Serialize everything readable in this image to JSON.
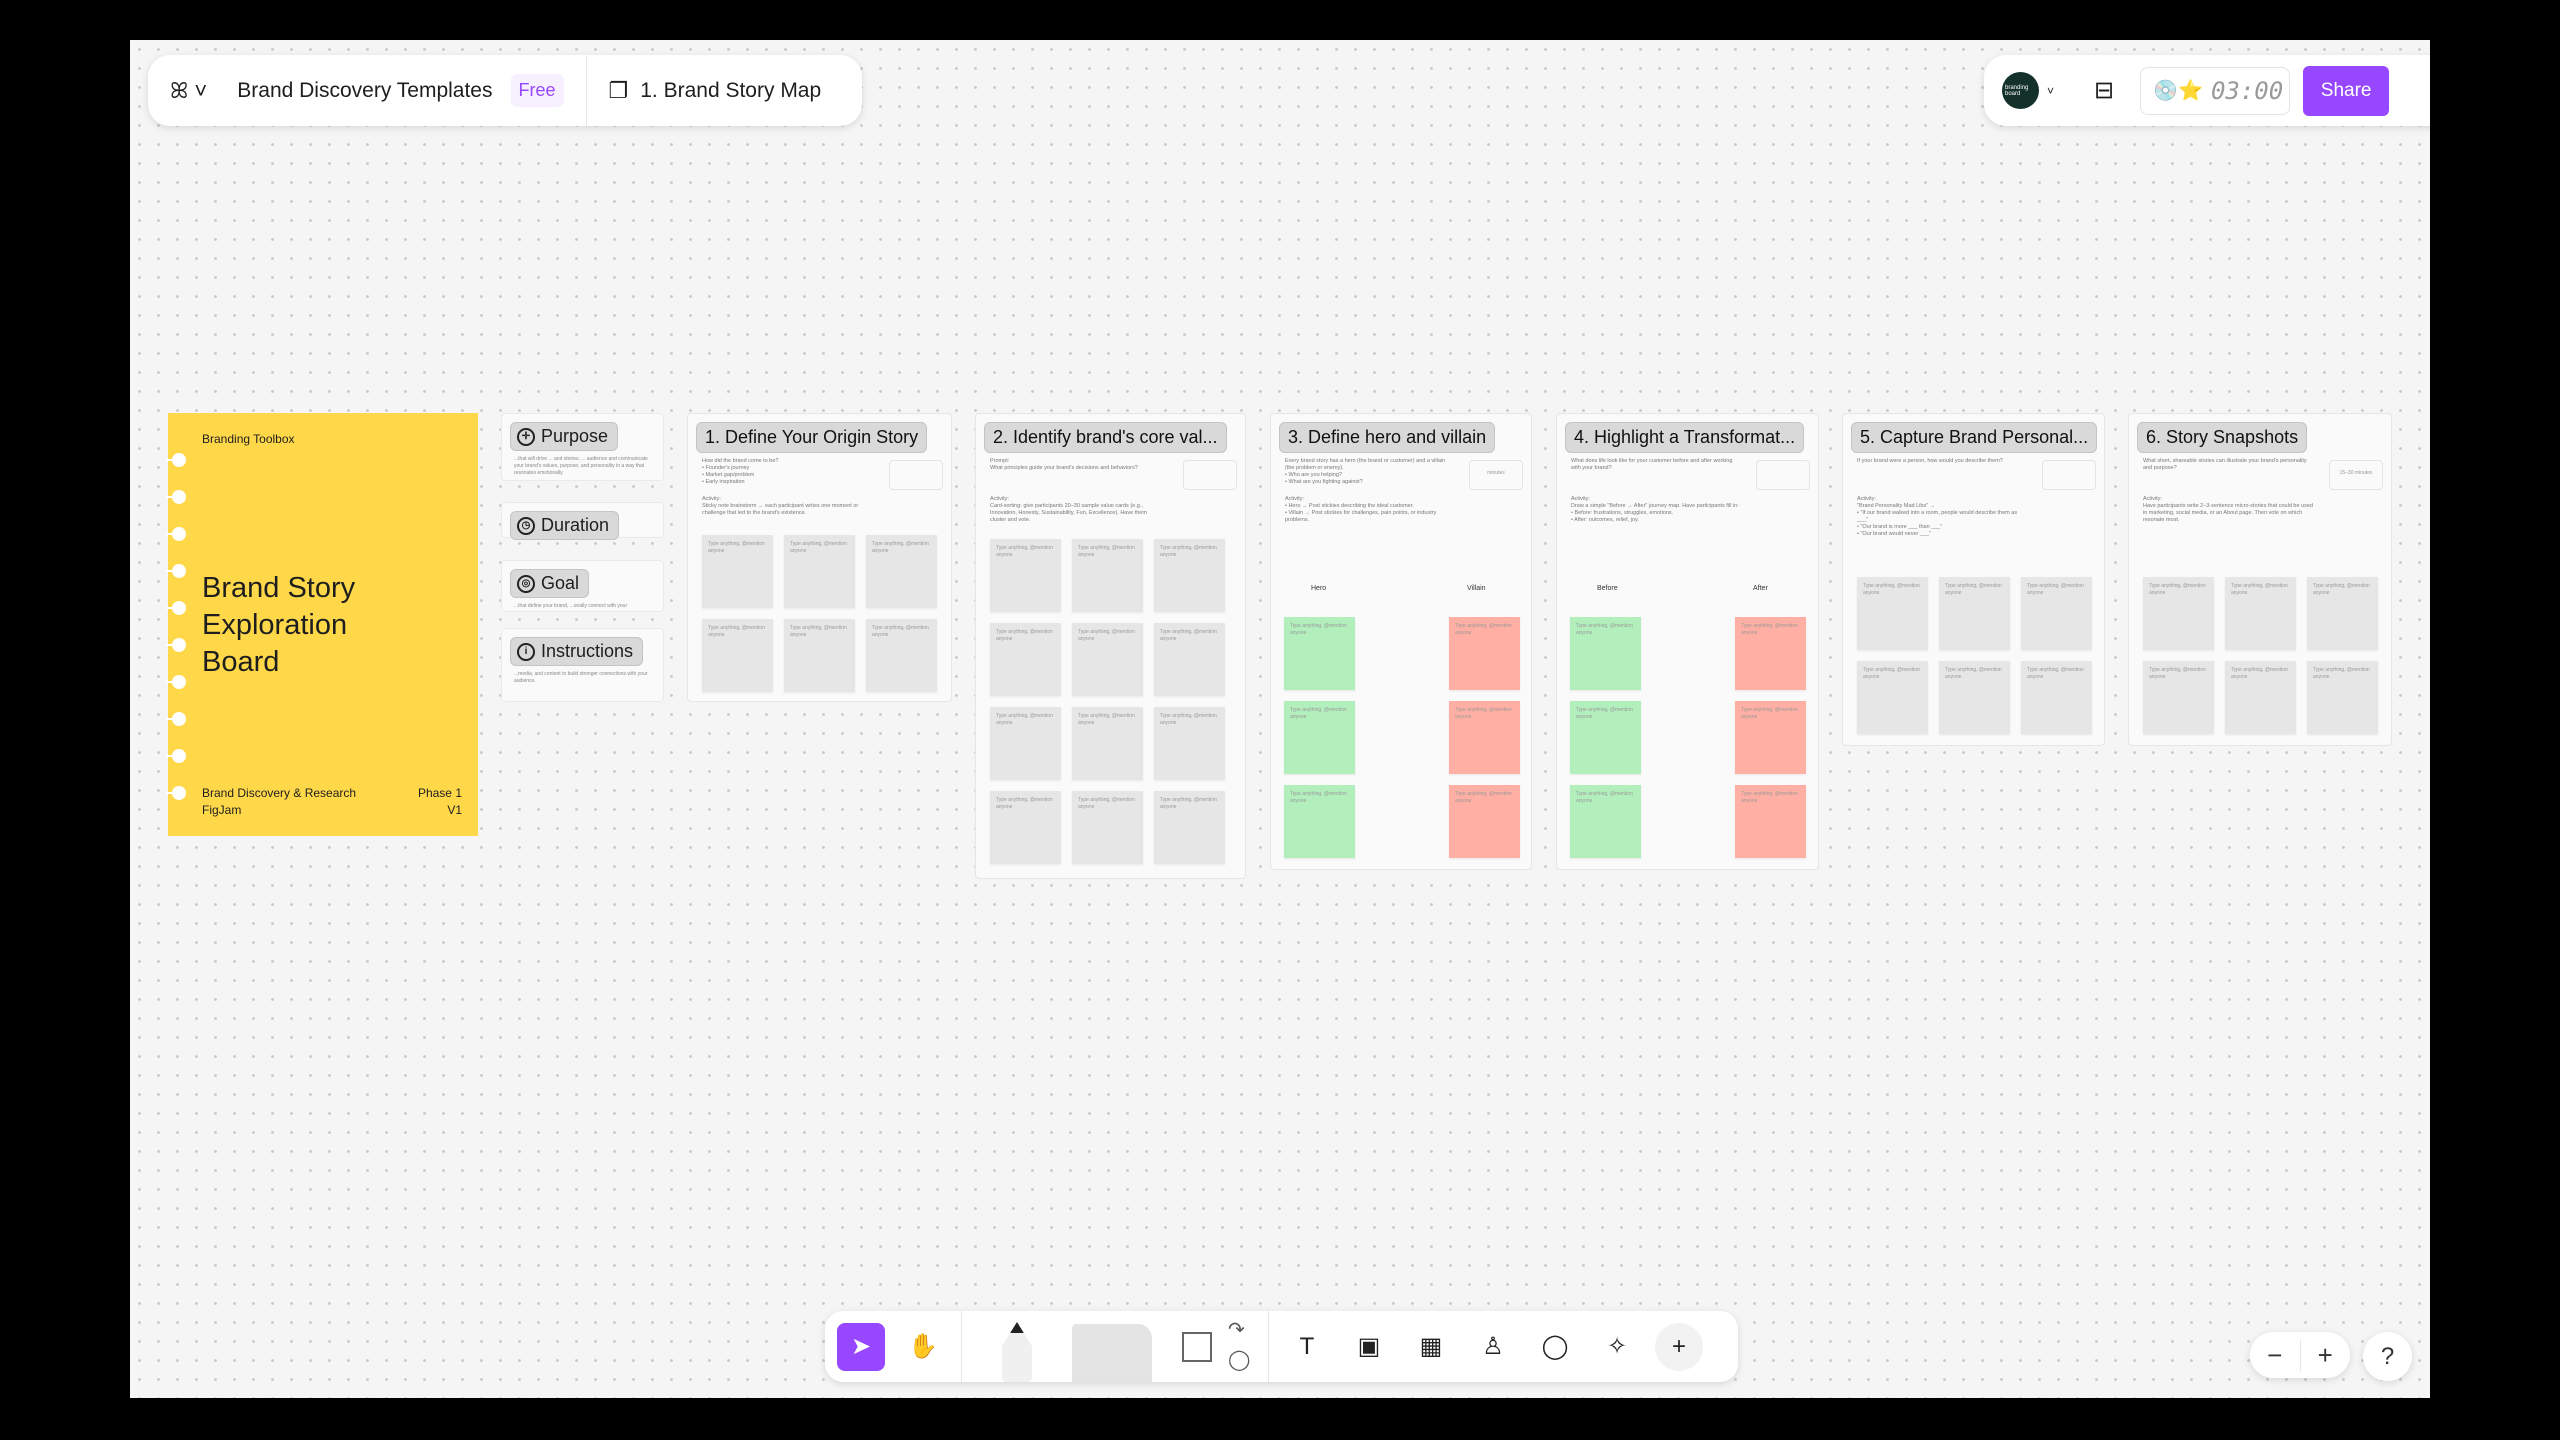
{
  "header": {
    "file_title": "Brand Discovery Templates",
    "plan_badge": "Free",
    "page_name": "1. Brand Story Map",
    "avatar_text": "branding board",
    "timer": "03:00",
    "share_label": "Share",
    "accent": "#9747ff"
  },
  "cover": {
    "eyebrow": "Branding Toolbox",
    "title_lines": [
      "Brand Story",
      "Exploration",
      "Board"
    ],
    "footer_left": [
      "Brand Discovery & Research",
      "FigJam"
    ],
    "footer_right": [
      "Phase 1",
      "V1"
    ],
    "color": "#ffd84a"
  },
  "info_cards": [
    {
      "label": "Purpose",
      "icon": "crosshair-icon",
      "snippet": "...that will drive ... and stories, ... audience and communicate your brand's values, purpose, and personality in a way that resonates emotionally."
    },
    {
      "label": "Duration",
      "icon": "clock-icon",
      "snippet": ""
    },
    {
      "label": "Goal",
      "icon": "target-icon",
      "snippet": "...that define your brand, ...onally connect with your"
    },
    {
      "label": "Instructions",
      "icon": "info-icon",
      "snippet": "...media, and content to build stronger connections with your audience."
    }
  ],
  "sticky_placeholder": "Type anything, @mention anyone",
  "frames": [
    {
      "title": "1. Define Your Origin Story",
      "prompt": "How did the brand come to be?\n• Founder's journey\n• Market gap/problem\n• Early inspiration",
      "activity": "Activity:\nSticky note brainstorm → each participant writes one moment or challenge that led to the brand's existence.",
      "timebox": "",
      "layout": "grid",
      "rows": 2
    },
    {
      "title": "2. Identify brand's core val...",
      "prompt": "Prompt:\nWhat principles guide your brand's decisions and behaviors?",
      "activity": "Activity:\nCard-sorting: give participants 20–30 sample value cards (e.g., Innovation, Honesty, Sustainability, Fun, Excellence). Have them cluster and vote.",
      "timebox": "",
      "layout": "grid",
      "rows": 4
    },
    {
      "title": "3. Define hero and villain",
      "prompt": "Every brand story has a hero (the brand or customer) and a villain (the problem or enemy).\n• Who are you helping?\n• What are you fighting against?",
      "activity": "Activity:\n• Hero → Post stickies describing the ideal customer.\n• Villain → Post stickies for challenges, pain points, or industry problems.",
      "timebox": "minutes",
      "layout": "split",
      "columns": [
        "Hero",
        "Villain"
      ]
    },
    {
      "title": "4. Highlight a Transformat...",
      "prompt": "What does life look like for your customer before and after working with your brand?",
      "activity": "Activity:\nDraw a simple \"Before → After\" journey map. Have participants fill in:\n• Before: frustrations, struggles, emotions.\n• After: outcomes, relief, joy.",
      "timebox": "",
      "layout": "split",
      "columns": [
        "Before",
        "After"
      ]
    },
    {
      "title": "5. Capture Brand Personal...",
      "prompt": "If your brand were a person, how would you describe them?",
      "activity": "Activity:\n\"Brand Personality Mad Libs\" →\n• \"If our brand walked into a room, people would describe them as ___\"\n• \"Our brand is more ___ than ___\"\n• \"Our brand would never ___\"",
      "timebox": "",
      "layout": "grid",
      "rows": 2
    },
    {
      "title": "6. Story Snapshots",
      "prompt": "What short, shareable stories can illustrate your brand's personality and purpose?",
      "activity": "Activity:\nHave participants write 2–3-sentence micro-stories that could be used in marketing, social media, or an About page. Then vote on which resonate most.",
      "timebox": "15–30 minutes",
      "layout": "grid",
      "rows": 2
    }
  ],
  "toolbar": {
    "tools": [
      {
        "name": "select-tool",
        "icon": "➤",
        "active": true
      },
      {
        "name": "hand-tool",
        "icon": "✋"
      },
      {
        "name": "text-tool",
        "icon": "T"
      },
      {
        "name": "section-tool",
        "icon": "▣"
      },
      {
        "name": "table-tool",
        "icon": "▦"
      },
      {
        "name": "stamp-tool",
        "icon": "♙"
      },
      {
        "name": "shape-tool",
        "icon": "◯"
      },
      {
        "name": "ai-tool",
        "icon": "✧"
      },
      {
        "name": "more-tool",
        "icon": "+"
      }
    ]
  },
  "zoom": {
    "out": "−",
    "in": "+",
    "help": "?"
  }
}
